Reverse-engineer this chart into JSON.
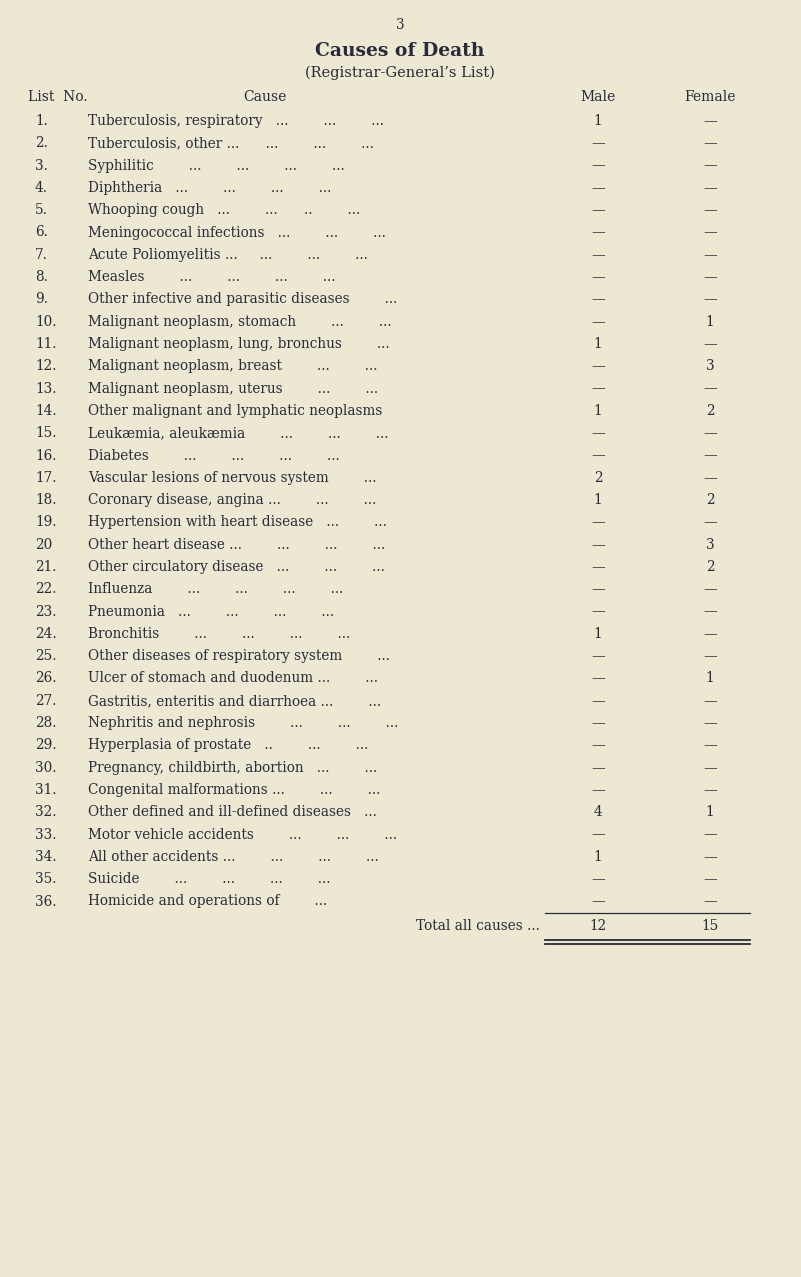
{
  "page_number": "3",
  "title": "Causes of Death",
  "subtitle": "(Registrar-General’s List)",
  "background_color": "#ede8d2",
  "text_color": "#2a2a3a",
  "rows": [
    {
      "num": "1.",
      "cause": "Tuberculosis, respiratory   ...        ...        ...",
      "male": "1",
      "female": "—"
    },
    {
      "num": "2.",
      "cause": "Tuberculosis, other ...      ...        ...        ...",
      "male": "—",
      "female": "—"
    },
    {
      "num": "3.",
      "cause": "Syphilitic        ...        ...        ...        ...",
      "male": "—",
      "female": "—"
    },
    {
      "num": "4.",
      "cause": "Diphtheria   ...        ...        ...        ...",
      "male": "—",
      "female": "—"
    },
    {
      "num": "5.",
      "cause": "Whooping cough   ...        ...      ..        ...",
      "male": "—",
      "female": "—"
    },
    {
      "num": "6.",
      "cause": "Meningococcal infections   ...        ...        ...",
      "male": "—",
      "female": "—"
    },
    {
      "num": "7.",
      "cause": "Acute Poliomyelitis ...     ...        ...        ...",
      "male": "—",
      "female": "—"
    },
    {
      "num": "8.",
      "cause": "Measles        ...        ...        ...        ...",
      "male": "—",
      "female": "—"
    },
    {
      "num": "9.",
      "cause": "Other infective and parasitic diseases        ...",
      "male": "—",
      "female": "—"
    },
    {
      "num": "10.",
      "cause": "Malignant neoplasm, stomach        ...        ...",
      "male": "—",
      "female": "1"
    },
    {
      "num": "11.",
      "cause": "Malignant neoplasm, lung, bronchus        ...",
      "male": "1",
      "female": "—"
    },
    {
      "num": "12.",
      "cause": "Malignant neoplasm, breast        ...        ...",
      "male": "—",
      "female": "3"
    },
    {
      "num": "13.",
      "cause": "Malignant neoplasm, uterus        ...        ...",
      "male": "—",
      "female": "—"
    },
    {
      "num": "14.",
      "cause": "Other malignant and lymphatic neoplasms",
      "male": "1",
      "female": "2"
    },
    {
      "num": "15.",
      "cause": "Leukæmia, aleukæmia        ...        ...        ...",
      "male": "—",
      "female": "—"
    },
    {
      "num": "16.",
      "cause": "Diabetes        ...        ...        ...        ...",
      "male": "—",
      "female": "—"
    },
    {
      "num": "17.",
      "cause": "Vascular lesions of nervous system        ...",
      "male": "2",
      "female": "—"
    },
    {
      "num": "18.",
      "cause": "Coronary disease, angina ...        ...        ...",
      "male": "1",
      "female": "2"
    },
    {
      "num": "19.",
      "cause": "Hypertension with heart disease   ...        ...",
      "male": "—",
      "female": "—"
    },
    {
      "num": "20",
      "cause": "Other heart disease ...        ...        ...        ...",
      "male": "—",
      "female": "3"
    },
    {
      "num": "21.",
      "cause": "Other circulatory disease   ...        ...        ...",
      "male": "—",
      "female": "2"
    },
    {
      "num": "22.",
      "cause": "Influenza        ...        ...        ...        ...",
      "male": "—",
      "female": "—"
    },
    {
      "num": "23.",
      "cause": "Pneumonia   ...        ...        ...        ...",
      "male": "—",
      "female": "—"
    },
    {
      "num": "24.",
      "cause": "Bronchitis        ...        ...        ...        ...",
      "male": "1",
      "female": "—"
    },
    {
      "num": "25.",
      "cause": "Other diseases of respiratory system        ...",
      "male": "—",
      "female": "—"
    },
    {
      "num": "26.",
      "cause": "Ulcer of stomach and duodenum ...        ...",
      "male": "—",
      "female": "1"
    },
    {
      "num": "27.",
      "cause": "Gastritis, enteritis and diarrhoea ...        ...",
      "male": "—",
      "female": "—"
    },
    {
      "num": "28.",
      "cause": "Nephritis and nephrosis        ...        ...        ...",
      "male": "—",
      "female": "—"
    },
    {
      "num": "29.",
      "cause": "Hyperplasia of prostate   ..        ...        ...",
      "male": "—",
      "female": "—"
    },
    {
      "num": "30.",
      "cause": "Pregnancy, childbirth, abortion   ...        ...",
      "male": "—",
      "female": "—"
    },
    {
      "num": "31.",
      "cause": "Congenital malformations ...        ...        ...",
      "male": "—",
      "female": "—"
    },
    {
      "num": "32.",
      "cause": "Other defined and ill-defined diseases   ...",
      "male": "4",
      "female": "1"
    },
    {
      "num": "33.",
      "cause": "Motor vehicle accidents        ...        ...        ...",
      "male": "—",
      "female": "—"
    },
    {
      "num": "34.",
      "cause": "All other accidents ...        ...        ...        ...",
      "male": "1",
      "female": "—"
    },
    {
      "num": "35.",
      "cause": "Suicide        ...        ...        ...        ...",
      "male": "—",
      "female": "—"
    },
    {
      "num": "36.",
      "cause": "Homicide and operations of        ...",
      "male": "—",
      "female": "—"
    }
  ],
  "total_label": "Total all causes ...",
  "total_male": "12",
  "total_female": "15",
  "font_size": 9.8,
  "header_font_size": 10.0,
  "title_font_size": 13.5,
  "subtitle_font_size": 10.5
}
